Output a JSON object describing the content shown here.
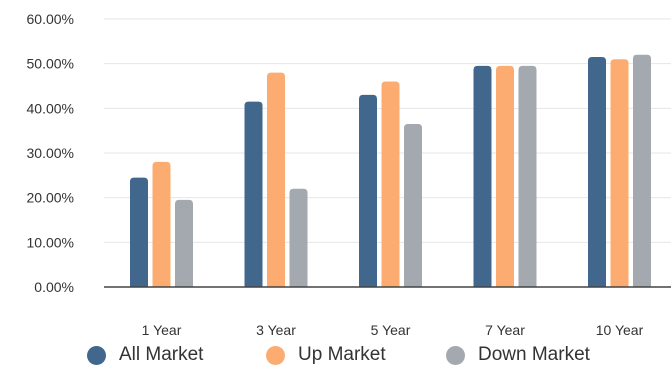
{
  "chart_data": {
    "type": "bar",
    "categories": [
      "1 Year",
      "3 Year",
      "5 Year",
      "7 Year",
      "10 Year"
    ],
    "series": [
      {
        "name": "All Market",
        "color": "#41678c",
        "values": [
          24.5,
          41.5,
          43.0,
          49.5,
          51.5
        ]
      },
      {
        "name": "Up Market",
        "color": "#fcac70",
        "values": [
          28.0,
          48.0,
          46.0,
          49.5,
          51.0
        ]
      },
      {
        "name": "Down Market",
        "color": "#a3a9ae",
        "values": [
          19.5,
          22.0,
          36.5,
          49.5,
          52.0
        ]
      }
    ],
    "yticks": [
      "0.00%",
      "10.00%",
      "20.00%",
      "30.00%",
      "40.00%",
      "50.00%",
      "60.00%"
    ],
    "ylim": [
      0,
      60
    ],
    "grid": true,
    "legend_position": "bottom"
  }
}
